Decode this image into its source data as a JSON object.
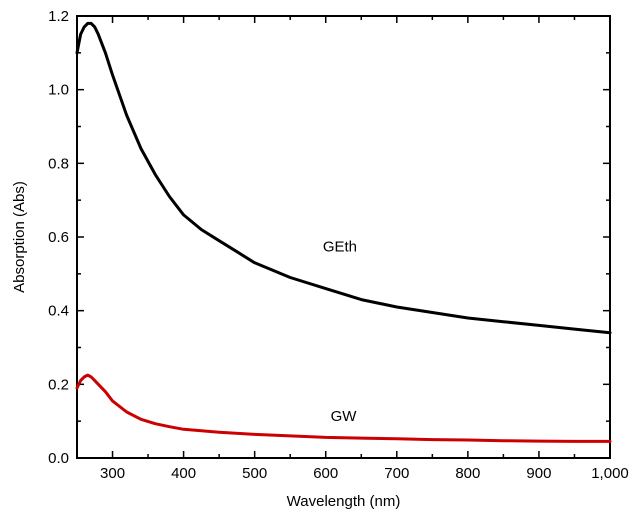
{
  "chart_data": {
    "type": "line",
    "title": "",
    "xlabel": "Wavelength (nm)",
    "ylabel": "Absorption (Abs)",
    "xlim": [
      250,
      1000
    ],
    "ylim": [
      0.0,
      1.2
    ],
    "x_ticks": [
      300,
      400,
      500,
      600,
      700,
      800,
      900,
      1000
    ],
    "x_tick_labels": [
      "300",
      "400",
      "500",
      "600",
      "700",
      "800",
      "900",
      "1,000"
    ],
    "y_ticks": [
      0.0,
      0.2,
      0.4,
      0.6,
      0.8,
      1.0,
      1.2
    ],
    "y_tick_labels": [
      "0.0",
      "0.2",
      "0.4",
      "0.6",
      "0.8",
      "1.0",
      "1.2"
    ],
    "grid": false,
    "legend": "none",
    "series": [
      {
        "name": "GEth",
        "color": "#000000",
        "x": [
          250,
          255,
          260,
          265,
          270,
          275,
          280,
          290,
          300,
          320,
          340,
          360,
          380,
          400,
          425,
          450,
          475,
          500,
          550,
          600,
          650,
          700,
          750,
          800,
          850,
          900,
          950,
          1000
        ],
        "y": [
          1.1,
          1.15,
          1.17,
          1.18,
          1.18,
          1.17,
          1.15,
          1.1,
          1.04,
          0.93,
          0.84,
          0.77,
          0.71,
          0.66,
          0.62,
          0.59,
          0.56,
          0.53,
          0.49,
          0.46,
          0.43,
          0.41,
          0.395,
          0.38,
          0.37,
          0.36,
          0.35,
          0.34
        ]
      },
      {
        "name": "GW",
        "color": "#cc0000",
        "x": [
          250,
          255,
          260,
          265,
          270,
          275,
          280,
          290,
          300,
          320,
          340,
          360,
          380,
          400,
          450,
          500,
          550,
          600,
          650,
          700,
          750,
          800,
          850,
          900,
          950,
          1000
        ],
        "y": [
          0.19,
          0.21,
          0.22,
          0.225,
          0.22,
          0.21,
          0.2,
          0.18,
          0.155,
          0.125,
          0.105,
          0.093,
          0.085,
          0.078,
          0.07,
          0.064,
          0.06,
          0.056,
          0.054,
          0.052,
          0.05,
          0.049,
          0.047,
          0.046,
          0.045,
          0.045
        ]
      }
    ],
    "annotations": [
      {
        "text": "GEth",
        "x": 620,
        "y": 0.56
      },
      {
        "text": "GW",
        "x": 625,
        "y": 0.1
      }
    ]
  }
}
